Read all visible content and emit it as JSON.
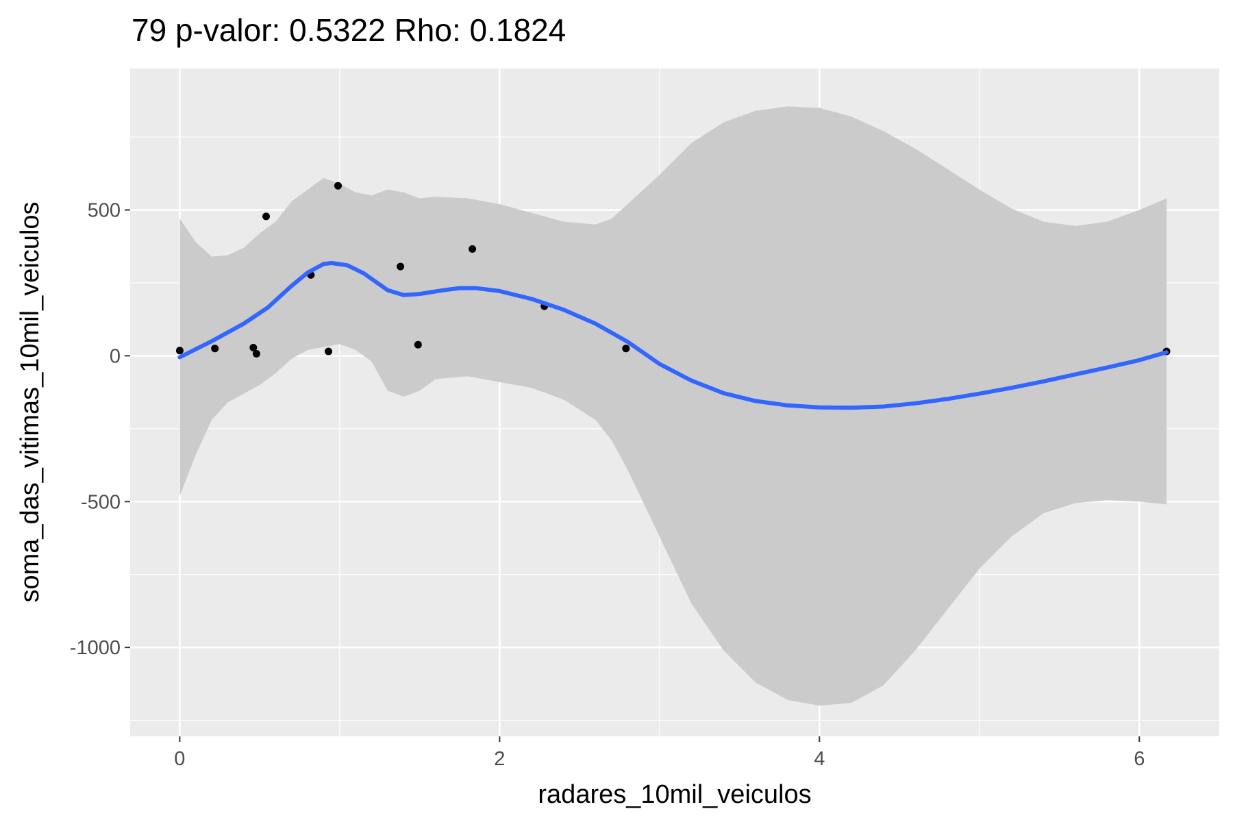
{
  "chart_data": {
    "type": "scatter",
    "title": "79 p-valor: 0.5322 Rho: 0.1824",
    "xlabel": "radares_10mil_veiculos",
    "ylabel": "soma_das_vitimas_10mil_veiculos",
    "xlim": [
      -0.31,
      6.5
    ],
    "ylim": [
      -1305,
      985
    ],
    "x_ticks": [
      0,
      2,
      4,
      6
    ],
    "x_tick_labels": [
      "0",
      "2",
      "4",
      "6"
    ],
    "y_ticks": [
      -1000,
      -500,
      0,
      500
    ],
    "y_tick_labels": [
      "-1000",
      "-500",
      "0",
      "500"
    ],
    "grid": true,
    "points": [
      {
        "x": 0.0,
        "y": 18
      },
      {
        "x": 0.22,
        "y": 25
      },
      {
        "x": 0.46,
        "y": 28
      },
      {
        "x": 0.48,
        "y": 7
      },
      {
        "x": 0.54,
        "y": 478
      },
      {
        "x": 0.82,
        "y": 277
      },
      {
        "x": 0.93,
        "y": 15
      },
      {
        "x": 0.99,
        "y": 583
      },
      {
        "x": 1.38,
        "y": 306
      },
      {
        "x": 1.49,
        "y": 38
      },
      {
        "x": 1.83,
        "y": 366
      },
      {
        "x": 2.28,
        "y": 170
      },
      {
        "x": 2.79,
        "y": 25
      },
      {
        "x": 6.17,
        "y": 15
      }
    ],
    "smooth_line": {
      "color": "#3366FF",
      "x": [
        0.0,
        0.2,
        0.4,
        0.55,
        0.7,
        0.8,
        0.9,
        0.95,
        1.05,
        1.15,
        1.3,
        1.4,
        1.5,
        1.65,
        1.75,
        1.85,
        2.0,
        2.2,
        2.4,
        2.6,
        2.8,
        3.0,
        3.2,
        3.4,
        3.6,
        3.8,
        4.0,
        4.2,
        4.4,
        4.6,
        4.8,
        5.0,
        5.2,
        5.4,
        5.6,
        5.8,
        6.0,
        6.17
      ],
      "y": [
        -5,
        50,
        110,
        165,
        240,
        285,
        315,
        318,
        310,
        283,
        225,
        208,
        212,
        225,
        232,
        232,
        222,
        195,
        158,
        110,
        48,
        -28,
        -85,
        -128,
        -155,
        -170,
        -177,
        -178,
        -174,
        -163,
        -148,
        -130,
        -110,
        -88,
        -64,
        -40,
        -15,
        12
      ]
    },
    "confidence_band": {
      "fill": "#CBCBCB",
      "x": [
        0.0,
        0.1,
        0.2,
        0.3,
        0.4,
        0.5,
        0.6,
        0.7,
        0.8,
        0.9,
        1.0,
        1.1,
        1.2,
        1.3,
        1.4,
        1.5,
        1.6,
        1.8,
        2.0,
        2.2,
        2.4,
        2.6,
        2.7,
        2.8,
        3.0,
        3.2,
        3.4,
        3.6,
        3.8,
        4.0,
        4.2,
        4.4,
        4.6,
        4.8,
        5.0,
        5.2,
        5.4,
        5.6,
        5.8,
        6.0,
        6.17
      ],
      "upper": [
        470,
        390,
        340,
        345,
        370,
        420,
        460,
        530,
        570,
        610,
        590,
        560,
        550,
        570,
        560,
        540,
        545,
        540,
        520,
        490,
        460,
        450,
        470,
        520,
        620,
        730,
        800,
        840,
        855,
        850,
        820,
        770,
        710,
        640,
        570,
        505,
        460,
        445,
        460,
        500,
        540
      ],
      "lower": [
        -480,
        -340,
        -220,
        -160,
        -130,
        -100,
        -60,
        -10,
        20,
        30,
        40,
        20,
        -20,
        -120,
        -140,
        -120,
        -80,
        -70,
        -90,
        -110,
        -150,
        -220,
        -290,
        -390,
        -620,
        -850,
        -1010,
        -1120,
        -1180,
        -1200,
        -1190,
        -1130,
        -1010,
        -870,
        -730,
        -620,
        -540,
        -505,
        -495,
        -500,
        -510
      ]
    }
  }
}
